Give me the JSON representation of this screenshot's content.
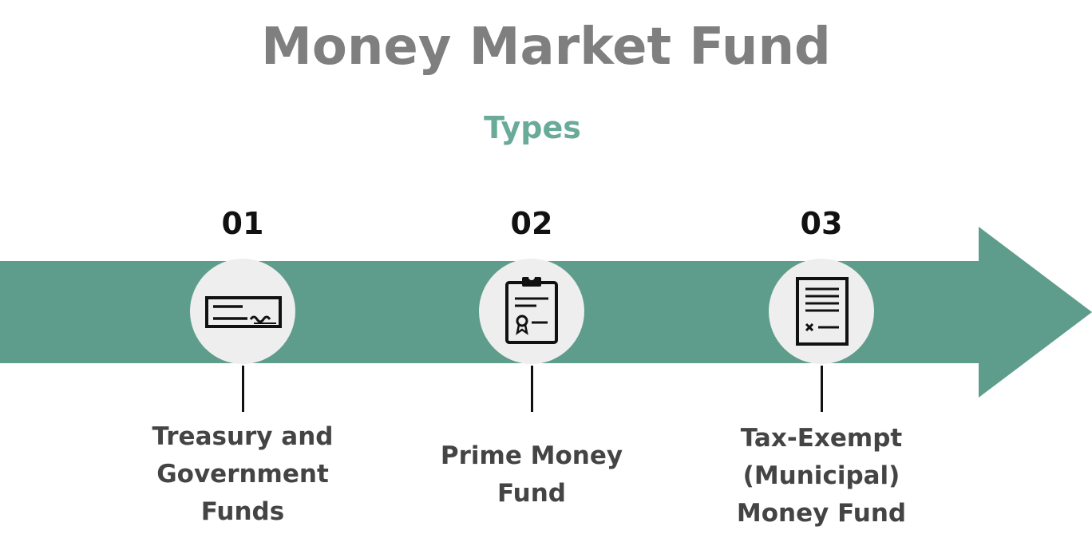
{
  "header": {
    "title": "Money Market Fund",
    "subtitle": "Types"
  },
  "colors": {
    "arrow": "#5e9c8b",
    "title": "#7f7f7f",
    "subtitle": "#6aaa98",
    "circle": "#eeeeee",
    "icon_stroke": "#111111"
  },
  "steps": [
    {
      "number": "01",
      "label_lines": [
        "Treasury and",
        "Government",
        "Funds"
      ],
      "icon": "cheque-icon"
    },
    {
      "number": "02",
      "label_lines": [
        "Prime Money",
        "Fund"
      ],
      "icon": "clipboard-certificate-icon"
    },
    {
      "number": "03",
      "label_lines": [
        "Tax-Exempt",
        "(Municipal)",
        "Money Fund"
      ],
      "icon": "document-icon"
    }
  ]
}
